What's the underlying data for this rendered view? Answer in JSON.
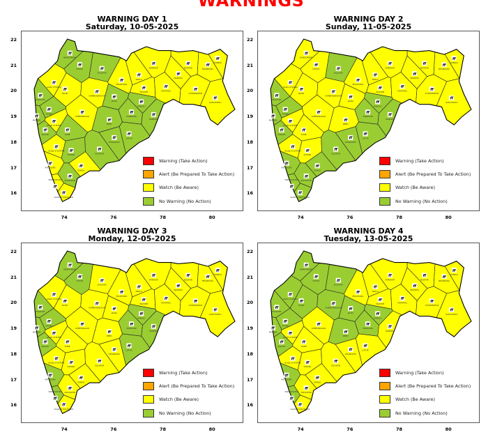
{
  "main_title": "WARNINGS",
  "colors": {
    "warning": "#ff0000",
    "alert": "#ffa500",
    "watch": "#ffff00",
    "no_warning": "#9acd32"
  },
  "legend": [
    {
      "label": "Warning (Take Action)",
      "color": "#ff0000"
    },
    {
      "label": "Alert (Be Prepared To Take Action)",
      "color": "#ffa500"
    },
    {
      "label": "Watch (Be Aware)",
      "color": "#ffff00"
    },
    {
      "label": "No Warning (No Action)",
      "color": "#9acd32"
    }
  ],
  "axes": {
    "y_ticks": [
      "22",
      "21",
      "20",
      "19",
      "18",
      "17",
      "16"
    ],
    "x_ticks": [
      "74",
      "76",
      "78",
      "80"
    ],
    "lon_range": [
      72.24,
      81.27
    ],
    "lat_range": [
      15.3,
      22.35
    ]
  },
  "districts": [
    {
      "name": "NANDURBAR",
      "lon": 74.2,
      "lat": 21.5
    },
    {
      "name": "DHULE",
      "lon": 74.6,
      "lat": 21.05
    },
    {
      "name": "JALGAON",
      "lon": 75.5,
      "lat": 20.9
    },
    {
      "name": "BULDHANA",
      "lon": 76.3,
      "lat": 20.45
    },
    {
      "name": "AKOLA",
      "lon": 77.0,
      "lat": 20.65
    },
    {
      "name": "WASHIM",
      "lon": 77.2,
      "lat": 20.15
    },
    {
      "name": "AMRAVATI",
      "lon": 77.6,
      "lat": 21.1
    },
    {
      "name": "NAGPUR",
      "lon": 79.0,
      "lat": 21.1
    },
    {
      "name": "WARDHA",
      "lon": 78.6,
      "lat": 20.7
    },
    {
      "name": "BHANDARA",
      "lon": 79.8,
      "lat": 21.05
    },
    {
      "name": "GONDIA",
      "lon": 80.2,
      "lat": 21.3
    },
    {
      "name": "YAVATMAL",
      "lon": 78.1,
      "lat": 20.2
    },
    {
      "name": "CHANDRAPUR",
      "lon": 79.3,
      "lat": 20.1
    },
    {
      "name": "GADCHIROLI",
      "lon": 80.1,
      "lat": 19.75
    },
    {
      "name": "NASIK",
      "lon": 74.0,
      "lat": 20.1
    },
    {
      "name": "Ghats of NASIK",
      "lon": 73.55,
      "lat": 20.35
    },
    {
      "name": "SAMBHAJINAGAR",
      "lon": 75.3,
      "lat": 20.0
    },
    {
      "name": "JALNA",
      "lon": 76.0,
      "lat": 19.8
    },
    {
      "name": "HINGOLI",
      "lon": 77.1,
      "lat": 19.6
    },
    {
      "name": "PARBHANI",
      "lon": 76.7,
      "lat": 19.2
    },
    {
      "name": "NANDED",
      "lon": 77.6,
      "lat": 19.1
    },
    {
      "name": "AHMEDNAGAR",
      "lon": 74.7,
      "lat": 19.2
    },
    {
      "name": "BEED",
      "lon": 75.8,
      "lat": 18.9
    },
    {
      "name": "LATUR",
      "lon": 76.6,
      "lat": 18.35
    },
    {
      "name": "DHARASHIV",
      "lon": 76.0,
      "lat": 18.2
    },
    {
      "name": "SOLAPUR",
      "lon": 75.4,
      "lat": 17.75
    },
    {
      "name": "PALGHAR",
      "lon": 73.0,
      "lat": 19.85
    },
    {
      "name": "THANE",
      "lon": 73.35,
      "lat": 19.3
    },
    {
      "name": "MUMBAI",
      "lon": 72.85,
      "lat": 19.05
    },
    {
      "name": "RAIGAD",
      "lon": 73.2,
      "lat": 18.5
    },
    {
      "name": "Ghats of PUNE",
      "lon": 73.55,
      "lat": 18.85
    },
    {
      "name": "PUNE",
      "lon": 74.1,
      "lat": 18.5
    },
    {
      "name": "Ghats of SATARA",
      "lon": 73.65,
      "lat": 17.85
    },
    {
      "name": "SATARA",
      "lon": 74.25,
      "lat": 17.7
    },
    {
      "name": "RATNAGIRI",
      "lon": 73.4,
      "lat": 17.2
    },
    {
      "name": "SANGLI",
      "lon": 74.65,
      "lat": 17.1
    },
    {
      "name": "KOLHAPUR",
      "lon": 74.2,
      "lat": 16.7
    },
    {
      "name": "SINDHUDURG",
      "lon": 73.6,
      "lat": 16.3
    },
    {
      "name": "Ghats of KOLHAPUR",
      "lon": 73.95,
      "lat": 16.05
    }
  ],
  "days": [
    {
      "title": "WARNING DAY 1",
      "date": "Saturday, 10-05-2025",
      "no_warning": [
        "NANDURBAR",
        "DHULE",
        "JALGAON",
        "JALNA",
        "HINGOLI",
        "PARBHANI",
        "NANDED",
        "BEED",
        "LATUR",
        "DHARASHIV",
        "SOLAPUR",
        "PALGHAR",
        "THANE",
        "MUMBAI",
        "RAIGAD",
        "PUNE",
        "SATARA",
        "KOLHAPUR"
      ]
    },
    {
      "title": "WARNING DAY 2",
      "date": "Sunday, 11-05-2025",
      "no_warning": [
        "JALGAON",
        "PALGHAR",
        "THANE",
        "MUMBAI",
        "RAIGAD",
        "RATNAGIRI",
        "SINDHUDURG",
        "KOLHAPUR",
        "Ghats of KOLHAPUR",
        "SANGLI",
        "SOLAPUR",
        "DHARASHIV",
        "LATUR",
        "PARBHANI",
        "HINGOLI",
        "NANDED"
      ]
    },
    {
      "title": "WARNING DAY 3",
      "date": "Monday, 12-05-2025",
      "no_warning": [
        "NANDURBAR",
        "DHULE",
        "PALGHAR",
        "THANE",
        "MUMBAI",
        "RAIGAD",
        "RATNAGIRI",
        "SINDHUDURG",
        "PARBHANI",
        "HINGOLI",
        "NANDED",
        "LATUR"
      ]
    },
    {
      "title": "WARNING DAY 4",
      "date": "Tuesday, 13-05-2025",
      "no_warning": [
        "NANDURBAR",
        "DHULE",
        "JALGAON",
        "NASIK",
        "Ghats of NASIK",
        "SAMBHAJINAGAR",
        "JALNA",
        "PALGHAR",
        "THANE",
        "MUMBAI",
        "RAIGAD",
        "RATNAGIRI",
        "SINDHUDURG",
        "BEED",
        "PARBHANI",
        "HINGOLI"
      ]
    }
  ],
  "default_level": "watch"
}
